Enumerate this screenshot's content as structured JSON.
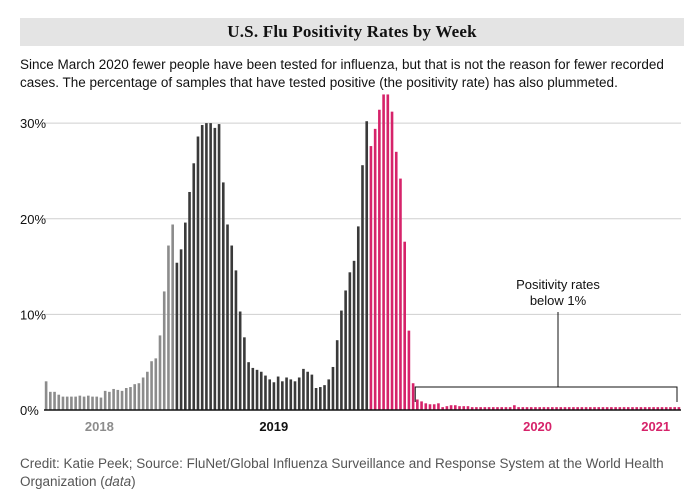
{
  "title": "U.S. Flu Positivity Rates by Week",
  "subtitle": "Since March 2020 fewer people have been tested for influenza, but that is not the reason for fewer recorded cases. The percentage of samples that have tested positive (the positivity rate) has also plummeted.",
  "credit": {
    "text": "Credit: Katie Peek; Source: FluNet/Global Influenza Surveillance and Response System at the World Health Organization (",
    "link": "data",
    "close": ")"
  },
  "colors": {
    "y2018": "#8c8c8c",
    "y2019": "#3a3a3a",
    "y2020": "#d6236a",
    "grid": "#cfcfcf",
    "axis": "#111111"
  },
  "chart_data": {
    "type": "bar",
    "ylim": [
      0,
      32
    ],
    "yticks": [
      0,
      10,
      20,
      30
    ],
    "ytick_labels": [
      "0%",
      "10%",
      "20%",
      "30%"
    ],
    "xtick_labels": [
      "2018",
      "2019",
      "2020",
      "2021"
    ],
    "annotation": {
      "line1": "Positivity rates",
      "line2": "below 1%"
    },
    "series": [
      {
        "year": "2018",
        "color_key": "y2018",
        "values": [
          3.0,
          1.9,
          1.9,
          1.6,
          1.4,
          1.4,
          1.4,
          1.4,
          1.5,
          1.4,
          1.5,
          1.4,
          1.4,
          1.3,
          2.0,
          1.9,
          2.2,
          2.1,
          2.0,
          2.3,
          2.4,
          2.7,
          2.8,
          3.4,
          4.0,
          5.1,
          5.4,
          7.8,
          12.4,
          17.2,
          19.4
        ]
      },
      {
        "year": "2019",
        "color_key": "y2019",
        "values": [
          15.4,
          16.8,
          19.6,
          22.8,
          25.8,
          28.6,
          29.8,
          30.0,
          30.0,
          29.5,
          29.9,
          23.8,
          19.4,
          17.2,
          14.6,
          10.3,
          7.6,
          5.0,
          4.4,
          4.2,
          4.0,
          3.6,
          3.2,
          2.9,
          3.5,
          3.0,
          3.4,
          3.2,
          3.0,
          3.4,
          4.3,
          4.0,
          3.7,
          2.3,
          2.4,
          2.6,
          3.2,
          4.5,
          7.3,
          10.4,
          12.5,
          14.4,
          15.6,
          19.2,
          25.6,
          30.2
        ]
      },
      {
        "year": "2020",
        "color_key": "y2020",
        "values": [
          27.6,
          29.4,
          31.4,
          33.0,
          33.0,
          31.2,
          27.0,
          24.2,
          17.6,
          8.3,
          2.8,
          1.1,
          0.9,
          0.7,
          0.6,
          0.6,
          0.7,
          0.3,
          0.4,
          0.5,
          0.5,
          0.4,
          0.4,
          0.4,
          0.3,
          0.3,
          0.3,
          0.3,
          0.3,
          0.3,
          0.3,
          0.3,
          0.3,
          0.3,
          0.5,
          0.3,
          0.3,
          0.3,
          0.3,
          0.3,
          0.3,
          0.3,
          0.3,
          0.3,
          0.3,
          0.3,
          0.3,
          0.3,
          0.3,
          0.3,
          0.3,
          0.3,
          0.3,
          0.3,
          0.3,
          0.3,
          0.3,
          0.3,
          0.3,
          0.3,
          0.3,
          0.3,
          0.3,
          0.3,
          0.3,
          0.3,
          0.3,
          0.3,
          0.3,
          0.3,
          0.3,
          0.3,
          0.3,
          0.3
        ]
      }
    ]
  }
}
